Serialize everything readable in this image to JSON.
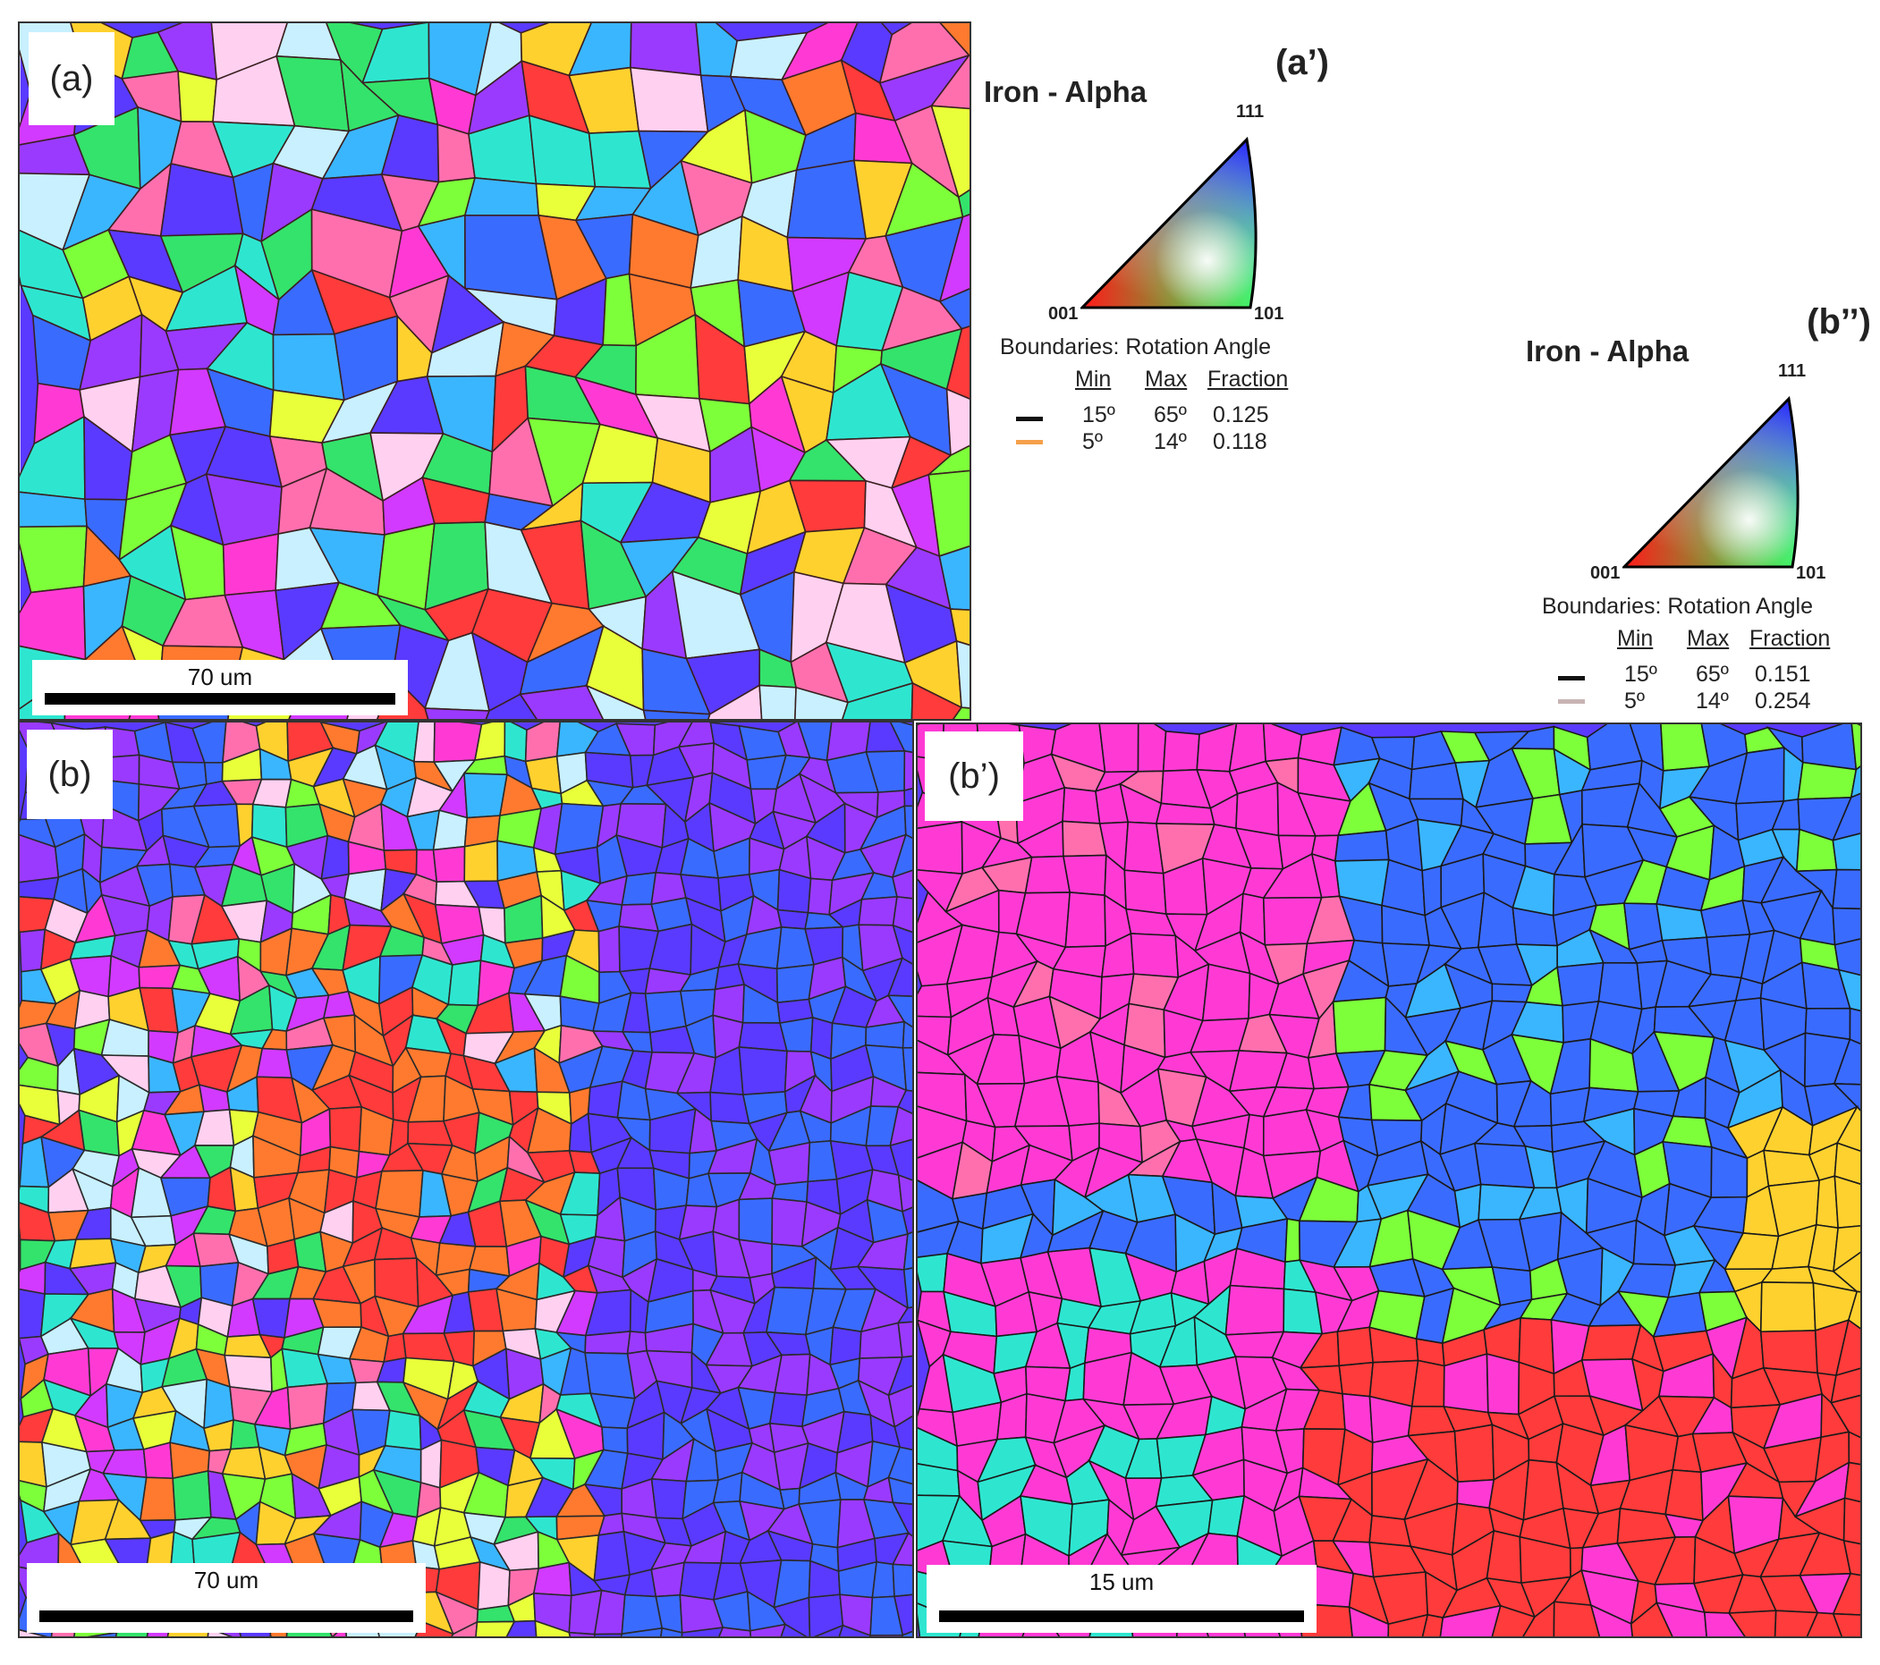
{
  "panels": {
    "a": {
      "label": "(a)",
      "scale_bar": "70 um"
    },
    "b": {
      "label": "(b)",
      "scale_bar": "70 um"
    },
    "bp": {
      "label": "(b’)",
      "scale_bar": "15 um"
    }
  },
  "legend_a": {
    "panel": "(a’)",
    "phase": "Iron - Alpha",
    "vertices": {
      "top": "111",
      "left": "001",
      "right": "101"
    },
    "boundaries_title": "Boundaries: Rotation Angle",
    "headers": {
      "min": "Min",
      "max": "Max",
      "fraction": "Fraction"
    },
    "rows": [
      {
        "color": "#111111",
        "min": "15º",
        "max": "65º",
        "fraction": "0.125"
      },
      {
        "color": "#f5a04a",
        "min": "5º",
        "max": "14º",
        "fraction": "0.118"
      }
    ]
  },
  "legend_b": {
    "panel": "(b’’)",
    "phase": "Iron - Alpha",
    "vertices": {
      "top": "111",
      "left": "001",
      "right": "101"
    },
    "boundaries_title": "Boundaries: Rotation Angle",
    "headers": {
      "min": "Min",
      "max": "Max",
      "fraction": "Fraction"
    },
    "rows": [
      {
        "color": "#111111",
        "min": "15º",
        "max": "65º",
        "fraction": "0.151"
      },
      {
        "color": "#c8b3b3",
        "min": "5º",
        "max": "14º",
        "fraction": "0.254"
      }
    ]
  },
  "colors": {
    "ipf_palette": [
      "#ff3b3b",
      "#ff7a2e",
      "#ffd12e",
      "#e8ff3a",
      "#7dff3a",
      "#34e36b",
      "#2ee6d0",
      "#3ab6ff",
      "#3a6bff",
      "#5a3aff",
      "#9a3aff",
      "#d23aff",
      "#ff3ad4",
      "#ff6fae",
      "#c8f0ff",
      "#ffd0f0"
    ]
  }
}
